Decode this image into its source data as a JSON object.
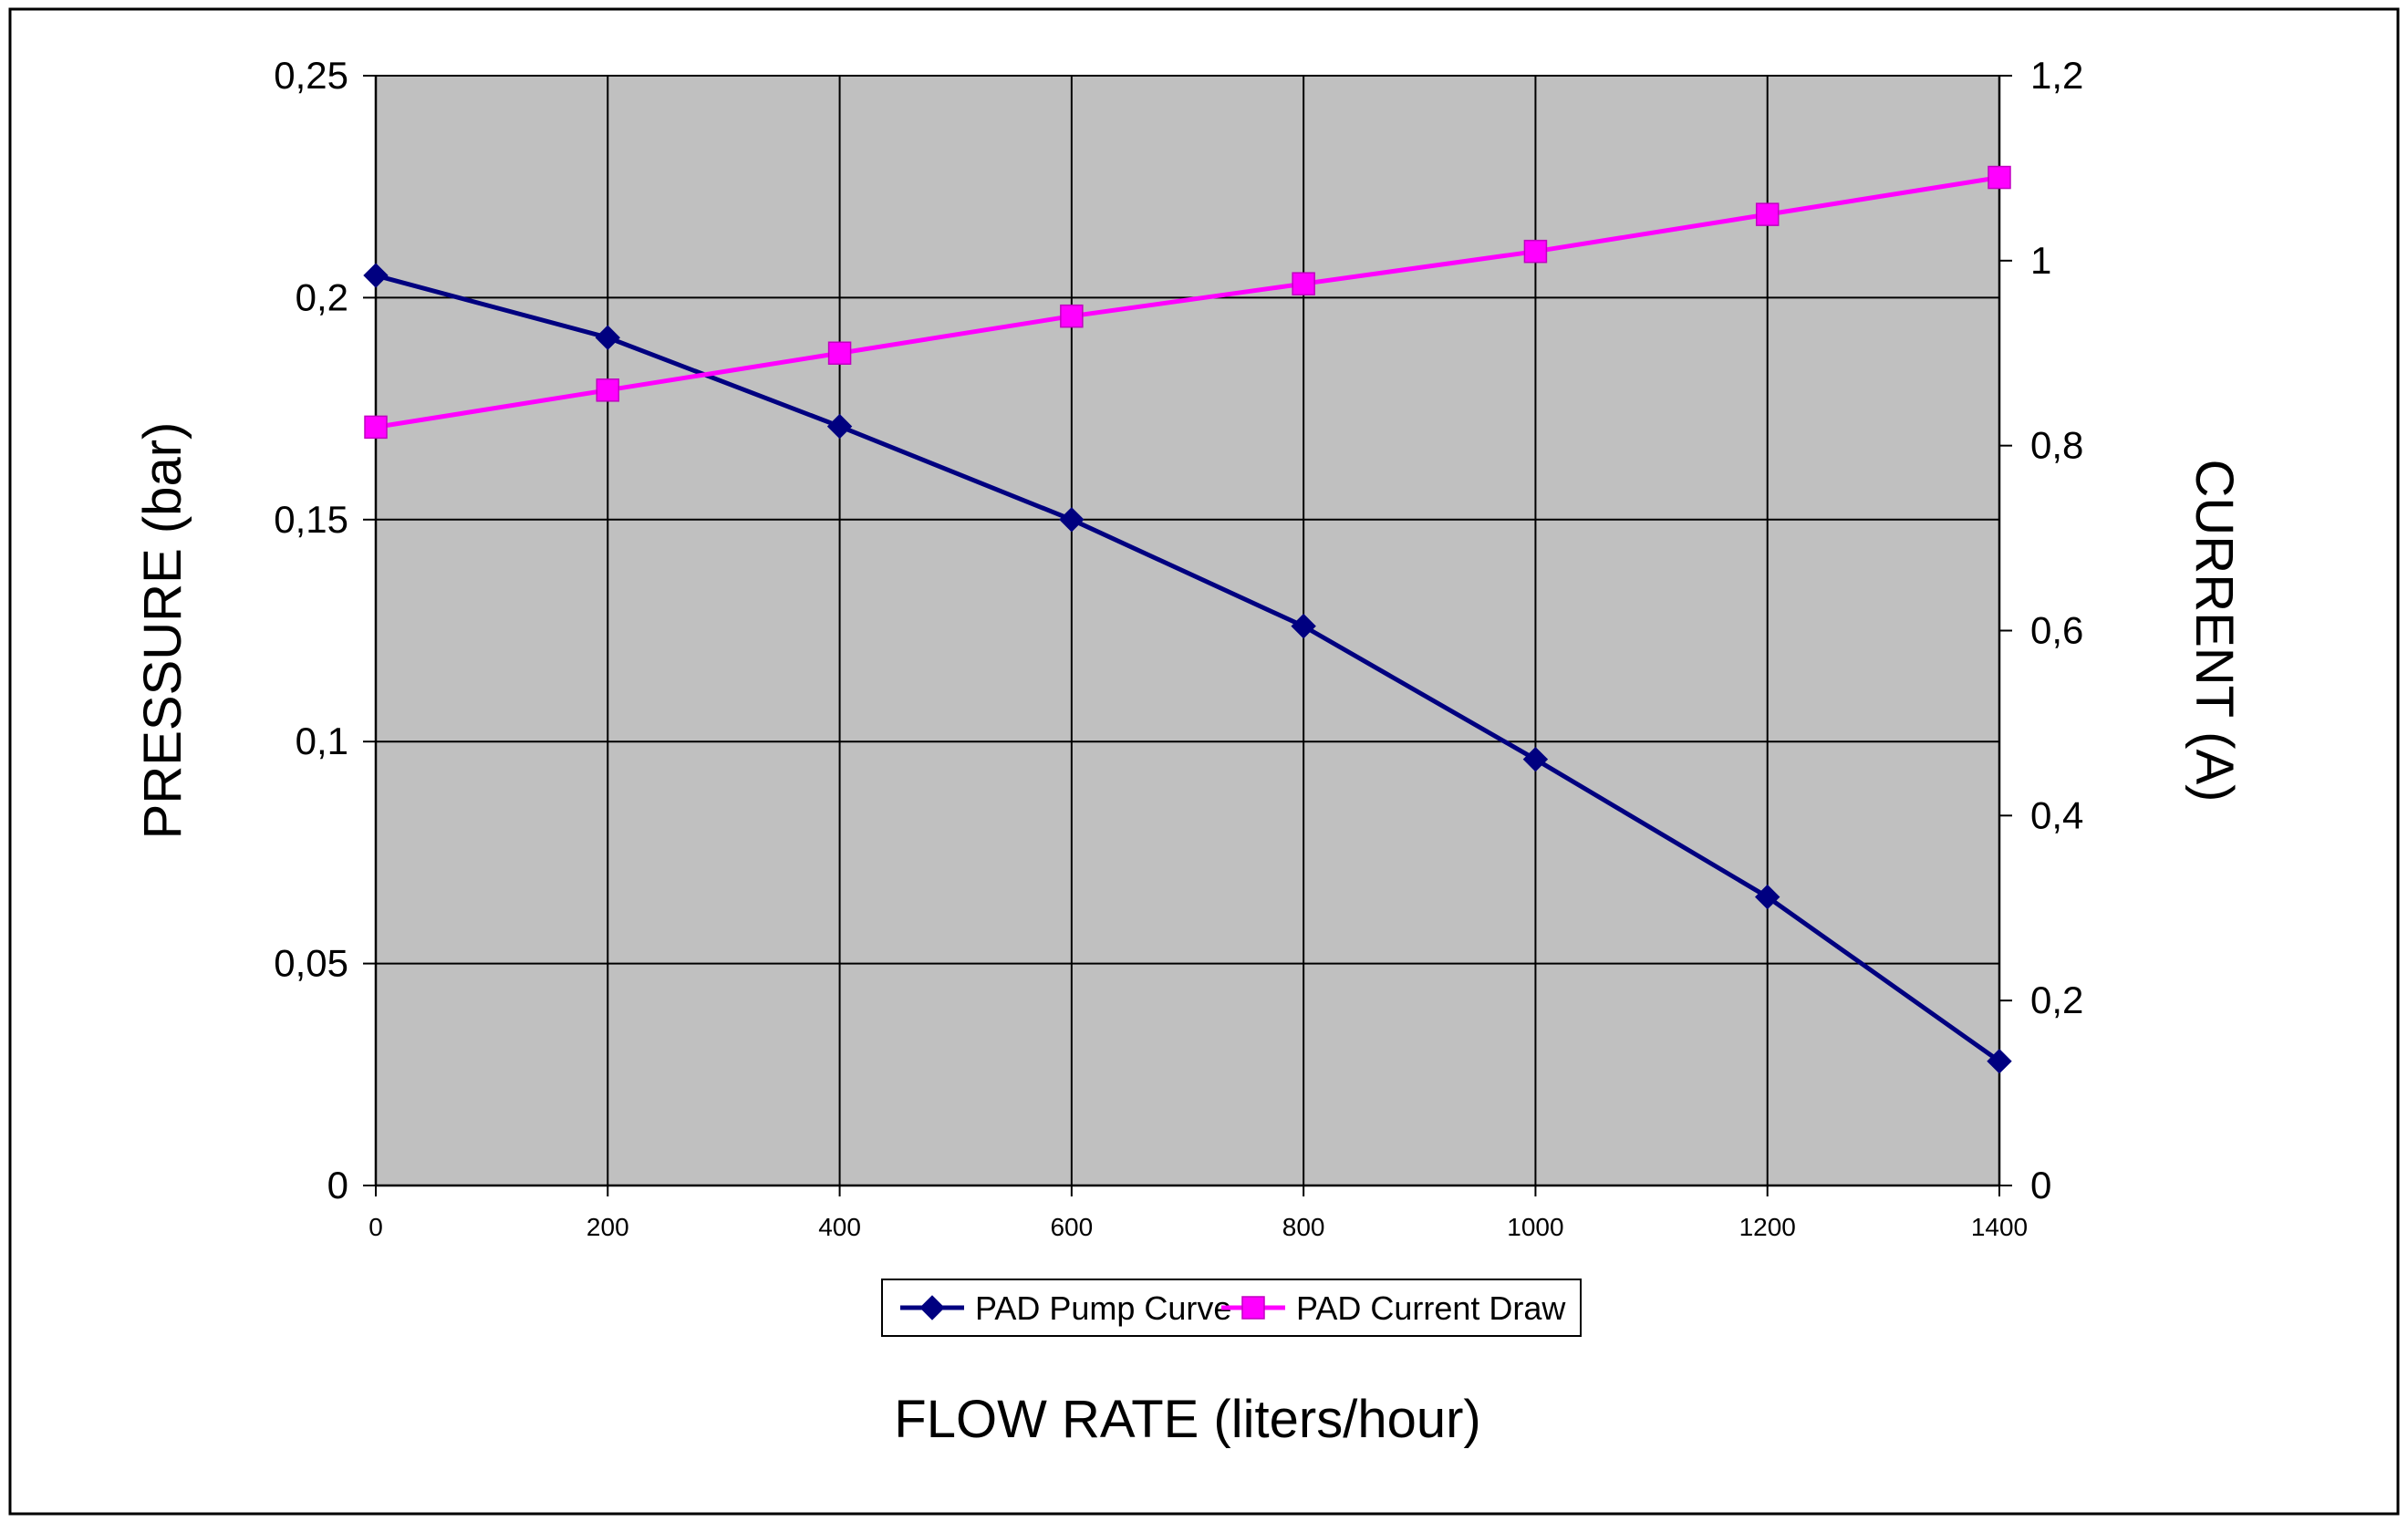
{
  "chart_data": {
    "type": "line",
    "title": "",
    "xlabel": "FLOW RATE (liters/hour)",
    "ylabel": "PRESSURE (bar)",
    "y2label": "CURRENT (A)",
    "x": [
      0,
      200,
      400,
      600,
      800,
      1000,
      1200,
      1400
    ],
    "xlim": [
      0,
      1400
    ],
    "ylim": [
      0,
      0.25
    ],
    "y2lim": [
      0,
      1.2
    ],
    "x_ticks": [
      "0",
      "200",
      "400",
      "600",
      "800",
      "1000",
      "1200",
      "1400"
    ],
    "y_ticks": [
      "0",
      "0,05",
      "0,1",
      "0,15",
      "0,2",
      "0,25"
    ],
    "y2_ticks": [
      "0",
      "0,2",
      "0,4",
      "0,6",
      "0,8",
      "1",
      "1,2"
    ],
    "grid": true,
    "plot_background": "#c0c0c0",
    "legend_position": "bottom",
    "series": [
      {
        "name": "PAD Pump Curve",
        "axis": "left",
        "marker": "diamond",
        "color": "#000080",
        "values": [
          0.205,
          0.191,
          0.171,
          0.15,
          0.126,
          0.096,
          0.065,
          0.028
        ]
      },
      {
        "name": "PAD Current Draw",
        "axis": "right",
        "marker": "square",
        "color": "#ff00ff",
        "values": [
          0.82,
          0.86,
          0.9,
          0.94,
          0.975,
          1.01,
          1.05,
          1.09
        ]
      }
    ]
  }
}
